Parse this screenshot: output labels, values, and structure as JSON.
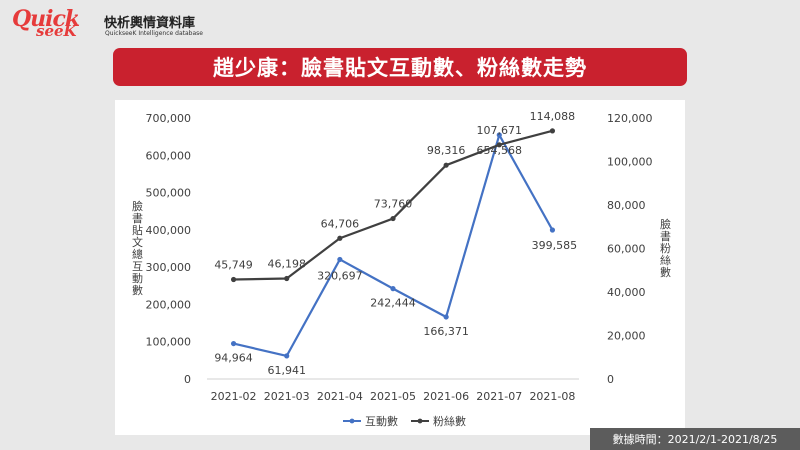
{
  "brand": {
    "logo_quick": "Quick",
    "logo_seek": "seeK",
    "name_zh": "快析輿情資料庫",
    "name_en": "QuickseeK Intelligence database"
  },
  "title": "趙少康：臉書貼文互動數、粉絲數走勢",
  "footer": "數據時間：2021/2/1-2021/8/25",
  "chart_data": {
    "type": "line",
    "categories": [
      "2021-02",
      "2021-03",
      "2021-04",
      "2021-05",
      "2021-06",
      "2021-07",
      "2021-08"
    ],
    "ylabel_left": "臉書貼文總互動數",
    "ylabel_right": "臉書粉絲數",
    "ylim_left": [
      0,
      700000
    ],
    "ylim_right": [
      0,
      120000
    ],
    "yticks_left": [
      "0",
      "100,000",
      "200,000",
      "300,000",
      "400,000",
      "500,000",
      "600,000",
      "700,000"
    ],
    "yticks_right": [
      "0",
      "20,000",
      "40,000",
      "60,000",
      "80,000",
      "100,000",
      "120,000"
    ],
    "legend_position": "bottom",
    "grid": false,
    "series": [
      {
        "name": "互動數",
        "axis": "left",
        "color": "#4472c4",
        "values": [
          94964,
          61941,
          320697,
          242444,
          166371,
          654568,
          399585
        ],
        "labels": [
          "94,964",
          "61,941",
          "320,697",
          "242,444",
          "166,371",
          "654,568",
          "399,585"
        ]
      },
      {
        "name": "粉絲數",
        "axis": "right",
        "color": "#404040",
        "values": [
          45749,
          46198,
          64706,
          73760,
          98316,
          107671,
          114088
        ],
        "labels": [
          "45,749",
          "46,198",
          "64,706",
          "73,760",
          "98,316",
          "107,671",
          "114,088"
        ]
      }
    ]
  }
}
